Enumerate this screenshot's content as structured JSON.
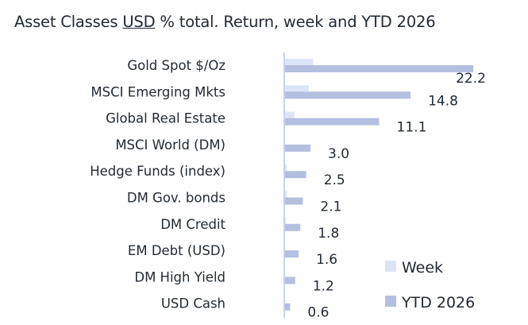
{
  "chart_data": {
    "type": "bar",
    "orientation": "horizontal",
    "title_parts": [
      "Asset Classes ",
      "USD",
      " % total. Return, week and YTD 2026"
    ],
    "categories": [
      "Gold Spot   $/Oz",
      "MSCI Emerging Mkts",
      "Global Real Estate",
      "MSCI World (DM)",
      "Hedge Funds (index)",
      "DM Gov. bonds",
      "DM Credit",
      "EM Debt (USD)",
      "DM High Yield",
      "USD Cash"
    ],
    "series": [
      {
        "name": "Week",
        "color": "#dde4f7",
        "values": [
          3.3,
          2.8,
          1.1,
          0.0,
          0.2,
          0.2,
          0.1,
          0.0,
          0.0,
          0.0
        ]
      },
      {
        "name": "YTD 2026",
        "color": "#b4bfe0",
        "values": [
          22.2,
          14.8,
          11.1,
          3.0,
          2.5,
          2.1,
          1.8,
          1.6,
          1.2,
          0.6
        ]
      }
    ],
    "data_labels": [
      "22.2",
      "14.8",
      "11.1",
      "3.0",
      "2.5",
      "2.1",
      "1.8",
      "1.6",
      "1.2",
      "0.6"
    ],
    "legend_position": "bottom-right",
    "grid": false,
    "axis_color": "#c5d3ef"
  }
}
